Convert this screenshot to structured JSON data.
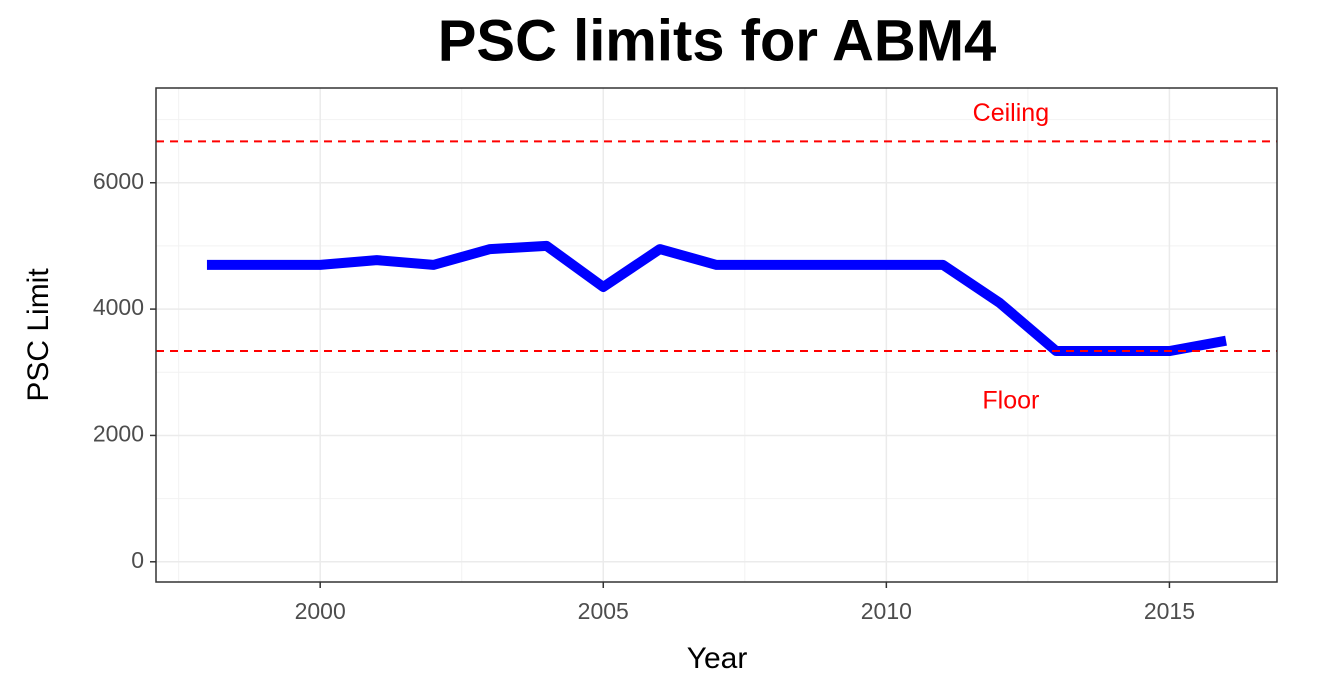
{
  "chart_data": {
    "type": "line",
    "title": "PSC limits for ABM4",
    "x_label": "Year",
    "y_label": "PSC Limit",
    "x": [
      1998,
      1999,
      2000,
      2001,
      2002,
      2003,
      2004,
      2005,
      2006,
      2007,
      2008,
      2009,
      2010,
      2011,
      2012,
      2013,
      2014,
      2015,
      2016
    ],
    "series": [
      {
        "color": "#0000ff",
        "values": [
          4700,
          4700,
          4700,
          4775,
          4700,
          4950,
          5000,
          4350,
          4950,
          4700,
          4700,
          4700,
          4700,
          4700,
          4100,
          3336,
          3336,
          3336,
          3500
        ]
      }
    ],
    "reference_lines": [
      {
        "value": 6656,
        "color": "#ff0000"
      },
      {
        "value": 3336,
        "color": "#ff0000"
      }
    ],
    "annotations": [
      {
        "text": "Ceiling",
        "x": 2012.2,
        "y": 7080,
        "color": "#ff0000"
      },
      {
        "text": "Floor",
        "x": 2012.2,
        "y": 2530,
        "color": "#ff0000"
      }
    ],
    "xlim": [
      1997.1,
      2016.9
    ],
    "ylim": [
      -320,
      7500
    ],
    "xticks": [
      2000,
      2005,
      2010,
      2015
    ],
    "yticks": [
      0,
      2000,
      4000,
      6000
    ],
    "grid": true
  }
}
